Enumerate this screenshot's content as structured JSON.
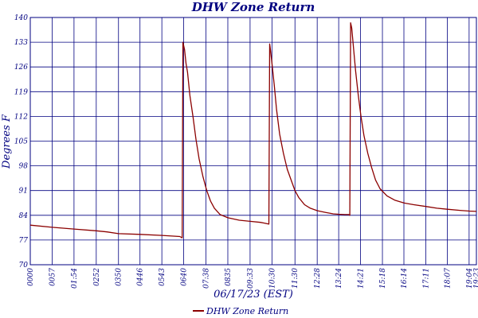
{
  "chart_data": {
    "type": "line",
    "title": "DHW Zone Return",
    "xlabel": "06/17/23 (EST)",
    "ylabel": "Degrees F",
    "ylim": [
      70,
      140
    ],
    "y_ticks": [
      "70",
      "77",
      "84",
      "91",
      "98",
      "105",
      "112",
      "119",
      "126",
      "133",
      "140"
    ],
    "x_ticks": [
      "0000",
      "0057",
      "01:54",
      "0252",
      "0350",
      "0446",
      "0543",
      "0640",
      "07:38",
      "0835",
      "09:33",
      "10:30",
      "11:30",
      "12:28",
      "13:24",
      "14:21",
      "15:18",
      "16:14",
      "17:11",
      "18:07",
      "19:04",
      "19:23"
    ],
    "x_tick_minutes": [
      0,
      57,
      114,
      172,
      230,
      286,
      343,
      400,
      458,
      515,
      573,
      630,
      690,
      748,
      804,
      861,
      918,
      974,
      1031,
      1087,
      1144,
      1163
    ],
    "grid": true,
    "legend_position": "bottom",
    "colors": {
      "series": "#8b0000",
      "grid": "#000080",
      "text": "#000080"
    },
    "series": [
      {
        "name": "DHW Zone Return",
        "x_minutes": [
          0,
          57,
          114,
          172,
          200,
          230,
          286,
          343,
          390,
          396,
          398,
          402,
          406,
          410,
          416,
          424,
          432,
          440,
          450,
          460,
          470,
          480,
          495,
          515,
          545,
          573,
          600,
          610,
          622,
          624,
          626,
          630,
          636,
          642,
          650,
          660,
          670,
          680,
          690,
          700,
          715,
          730,
          748,
          770,
          790,
          804,
          820,
          830,
          833,
          835,
          838,
          843,
          848,
          855,
          862,
          870,
          880,
          890,
          900,
          912,
          930,
          950,
          974,
          1000,
          1031,
          1060,
          1087,
          1120,
          1144,
          1163
        ],
        "values": [
          81.2,
          80.6,
          80.1,
          79.6,
          79.3,
          78.8,
          78.6,
          78.3,
          78.0,
          77.6,
          133.0,
          131.0,
          127.0,
          124.5,
          118.0,
          112.0,
          105.5,
          100.0,
          95.0,
          91.0,
          88.0,
          86.0,
          84.2,
          83.3,
          82.6,
          82.3,
          82.0,
          81.8,
          81.5,
          132.5,
          131.0,
          127.0,
          121.0,
          114.0,
          107.0,
          101.5,
          97.0,
          94.0,
          91.0,
          89.0,
          87.0,
          86.0,
          85.3,
          84.8,
          84.4,
          84.3,
          84.2,
          84.2,
          84.0,
          138.5,
          137.0,
          131.0,
          125.0,
          118.0,
          112.0,
          106.5,
          101.5,
          97.5,
          94.0,
          91.5,
          89.5,
          88.3,
          87.5,
          87.0,
          86.5,
          86.0,
          85.7,
          85.4,
          85.2,
          85.1
        ]
      }
    ]
  }
}
